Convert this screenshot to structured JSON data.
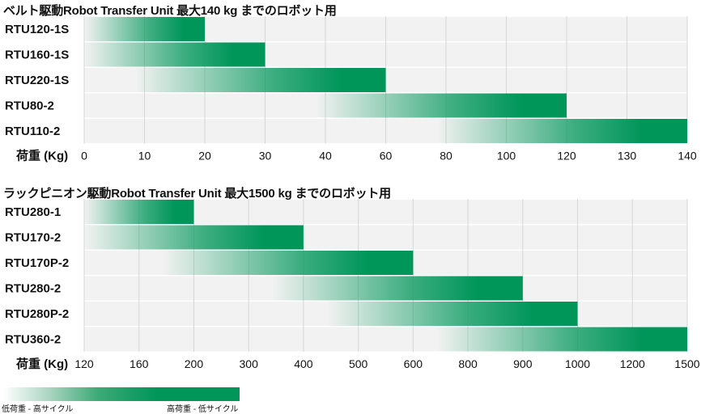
{
  "legend": {
    "low_label": "低荷重 - 高サイクル",
    "high_label": "高荷重 - 低サイクル"
  },
  "colors": {
    "bar": "#00965a",
    "row_bg": "#f2f2f2",
    "grid": "#d6d6d6"
  },
  "chart_data": [
    {
      "type": "bar",
      "orientation": "horizontal",
      "title": "ベルト駆動Robot Transfer Unit 最大140 kg までのロボット用",
      "xlabel": "荷重 (Kg)",
      "categories": [
        "RTU120-1S",
        "RTU160-1S",
        "RTU220-1S",
        "RTU80-2",
        "RTU110-2"
      ],
      "values": [
        20,
        30,
        60,
        120,
        140
      ],
      "xticks": [
        "0",
        "10",
        "20",
        "30",
        "40",
        "60",
        "80",
        "100",
        "120",
        "130",
        "140"
      ],
      "xlim": [
        "0",
        "140"
      ],
      "grid": true
    },
    {
      "type": "bar",
      "orientation": "horizontal",
      "title": "ラックピニオン駆動Robot Transfer Unit 最大1500 kg までのロボット用",
      "xlabel": "荷重 (Kg)",
      "categories": [
        "RTU280-1",
        "RTU170-2",
        "RTU170P-2",
        "RTU280-2",
        "RTU280P-2",
        "RTU360-2"
      ],
      "values": [
        200,
        400,
        600,
        900,
        1000,
        1500
      ],
      "xticks": [
        "120",
        "160",
        "200",
        "300",
        "400",
        "500",
        "600",
        "800",
        "900",
        "1000",
        "1200",
        "1500"
      ],
      "xlim": [
        "120",
        "1500"
      ],
      "grid": true
    }
  ]
}
